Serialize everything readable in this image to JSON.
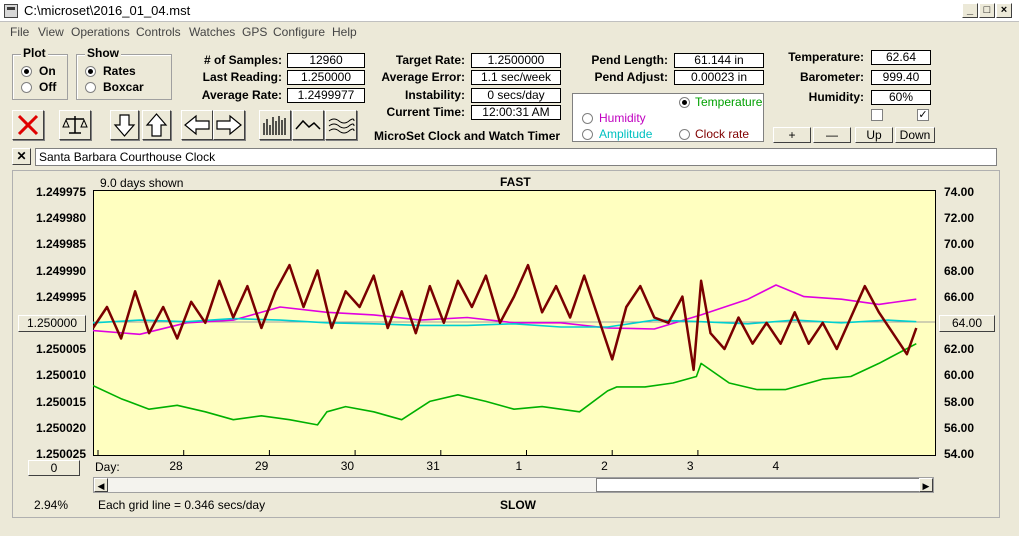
{
  "window": {
    "title": "C:\\microset\\2016_01_04.mst"
  },
  "menu": [
    "File",
    "View",
    "Operations",
    "Controls",
    "Watches",
    "GPS",
    "Configure",
    "Help"
  ],
  "plot_group": {
    "label": "Plot",
    "options": [
      "On",
      "Off"
    ],
    "selected": "On"
  },
  "show_group": {
    "label": "Show",
    "options": [
      "Rates",
      "Boxcar"
    ],
    "selected": "Rates"
  },
  "stats": {
    "samples_label": "# of Samples:",
    "samples": "12960",
    "last_label": "Last Reading:",
    "last": "1.250000",
    "avg_label": "Average Rate:",
    "avg": "1.2499977",
    "target_label": "Target Rate:",
    "target": "1.2500000",
    "avgerr_label": "Average Error:",
    "avgerr": "1.1 sec/week",
    "instab_label": "Instability:",
    "instab": "0 secs/day",
    "time_label": "Current Time:",
    "time": "12:00:31 AM",
    "pendlen_label": "Pend Length:",
    "pendlen": "61.144 in",
    "pendadj_label": "Pend Adjust:",
    "pendadj": "0.00023 in",
    "temp_label": "Temperature:",
    "temp": "62.64",
    "baro_label": "Barometer:",
    "baro": "999.40",
    "hum_label": "Humidity:",
    "hum": "60%"
  },
  "app_caption": "MicroSet Clock and Watch Timer",
  "series_select": {
    "options": [
      {
        "label": "Temperature",
        "color": "#00a000",
        "selected": true
      },
      {
        "label": "Humidity",
        "color": "#c000c0",
        "selected": false
      },
      {
        "label": "Amplitude",
        "color": "#00c0c0",
        "selected": false
      },
      {
        "label": "Clock rate",
        "color": "#800000",
        "selected": false
      }
    ]
  },
  "adjust_buttons": [
    "+",
    "—",
    "Up",
    "Down"
  ],
  "checkboxes": [
    false,
    true
  ],
  "description": "Santa Barbara Courthouse Clock",
  "chart_header": {
    "days_shown": "9.0 days shown",
    "top_label": "FAST",
    "bottom_label": "SLOW",
    "grid_note": "Each grid line = 0.346 secs/day",
    "percent": "2.94%",
    "left_button": "1.250000",
    "right_button": "64.00",
    "bottom_left_button": "0",
    "day_label": "Day:"
  },
  "chart_data": {
    "type": "line",
    "x_labels": [
      "28",
      "29",
      "30",
      "31",
      "1",
      "2",
      "3",
      "4"
    ],
    "y_left_ticks": [
      "1.249975",
      "1.249980",
      "1.249985",
      "1.249990",
      "1.249995",
      "1.250000",
      "1.250005",
      "1.250010",
      "1.250015",
      "1.250020",
      "1.250025"
    ],
    "y_right_ticks": [
      "74.00",
      "72.00",
      "70.00",
      "68.00",
      "66.00",
      "64.00",
      "62.00",
      "60.00",
      "58.00",
      "56.00",
      "54.00"
    ],
    "x_range_days": [
      0,
      9
    ],
    "series": [
      {
        "name": "Temperature",
        "color": "#00b000",
        "axis": "right",
        "x": [
          0,
          0.3,
          0.6,
          0.9,
          1.2,
          1.5,
          1.8,
          2.1,
          2.4,
          2.5,
          2.7,
          3.0,
          3.3,
          3.6,
          3.9,
          4.2,
          4.5,
          4.8,
          5.2,
          5.5,
          5.6,
          5.9,
          6.2,
          6.45,
          6.5,
          6.8,
          7.1,
          7.4,
          7.8,
          8.1,
          8.4,
          8.8
        ],
        "y": [
          59.6,
          58.6,
          57.8,
          58.1,
          57.6,
          57.0,
          57.3,
          57.0,
          56.6,
          57.6,
          58.0,
          57.6,
          57.0,
          58.4,
          58.9,
          58.4,
          57.8,
          58.0,
          57.6,
          59.2,
          59.5,
          59.5,
          59.8,
          60.3,
          61.3,
          59.8,
          59.3,
          59.3,
          60.1,
          60.3,
          61.3,
          62.8
        ]
      },
      {
        "name": "Humidity",
        "color": "#e000e0",
        "axis": "left",
        "x": [
          0,
          0.5,
          1.0,
          1.5,
          2.0,
          2.5,
          3.0,
          3.5,
          4.0,
          4.5,
          5.0,
          5.5,
          6.0,
          6.5,
          7.0,
          7.3,
          7.6,
          8.0,
          8.4,
          8.8
        ],
        "y": [
          1.2500005,
          1.2500012,
          1.249999,
          1.2499985,
          1.249996,
          1.249997,
          1.2499975,
          1.2499985,
          1.249998,
          1.249999,
          1.249999,
          1.25,
          1.2500002,
          1.2499975,
          1.2499945,
          1.2499918,
          1.249994,
          1.2499945,
          1.2499955,
          1.2499945
        ]
      },
      {
        "name": "Amplitude",
        "color": "#00d0d0",
        "axis": "left",
        "x": [
          0,
          0.5,
          1.0,
          1.5,
          2.0,
          2.5,
          3.0,
          3.5,
          4.0,
          4.5,
          5.0,
          5.5,
          6.0,
          6.5,
          7.0,
          7.5,
          8.0,
          8.5,
          8.8
        ],
        "y": [
          1.249999,
          1.2499985,
          1.2499988,
          1.2499982,
          1.2499985,
          1.249999,
          1.2499992,
          1.2499995,
          1.2499995,
          1.2499992,
          1.2499998,
          1.2499998,
          1.2499985,
          1.2499988,
          1.2499992,
          1.2499985,
          1.249999,
          1.2499985,
          1.2499988
        ]
      },
      {
        "name": "Clock rate",
        "color": "#7a0000",
        "axis": "left",
        "x": [
          0,
          0.15,
          0.3,
          0.45,
          0.6,
          0.75,
          0.9,
          1.05,
          1.2,
          1.35,
          1.5,
          1.65,
          1.8,
          1.95,
          2.1,
          2.25,
          2.4,
          2.55,
          2.7,
          2.85,
          3.0,
          3.15,
          3.3,
          3.45,
          3.6,
          3.75,
          3.9,
          4.05,
          4.2,
          4.35,
          4.5,
          4.65,
          4.8,
          4.95,
          5.1,
          5.25,
          5.4,
          5.55,
          5.7,
          5.85,
          6.0,
          6.15,
          6.3,
          6.42,
          6.5,
          6.6,
          6.75,
          6.9,
          7.05,
          7.2,
          7.35,
          7.5,
          7.65,
          7.8,
          7.95,
          8.1,
          8.25,
          8.4,
          8.55,
          8.7,
          8.8
        ],
        "y": [
          1.25,
          1.249996,
          1.250002,
          1.249993,
          1.250001,
          1.249996,
          1.250002,
          1.249995,
          1.249999,
          1.249991,
          1.249998,
          1.249992,
          1.25,
          1.249993,
          1.249988,
          1.249996,
          1.249989,
          1.25,
          1.249993,
          1.249996,
          1.24999,
          1.25,
          1.249993,
          1.250001,
          1.249992,
          1.249999,
          1.249991,
          1.249996,
          1.24999,
          1.249999,
          1.249994,
          1.249988,
          1.249997,
          1.249992,
          1.249998,
          1.24999,
          1.249998,
          1.250006,
          1.249996,
          1.249992,
          1.249998,
          1.249999,
          1.249994,
          1.250008,
          1.249991,
          1.250001,
          1.250004,
          1.249998,
          1.250003,
          1.249999,
          1.250003,
          1.249997,
          1.250003,
          1.249999,
          1.250004,
          1.249998,
          1.249992,
          1.249997,
          1.250001,
          1.250005,
          1.25
        ]
      }
    ]
  }
}
